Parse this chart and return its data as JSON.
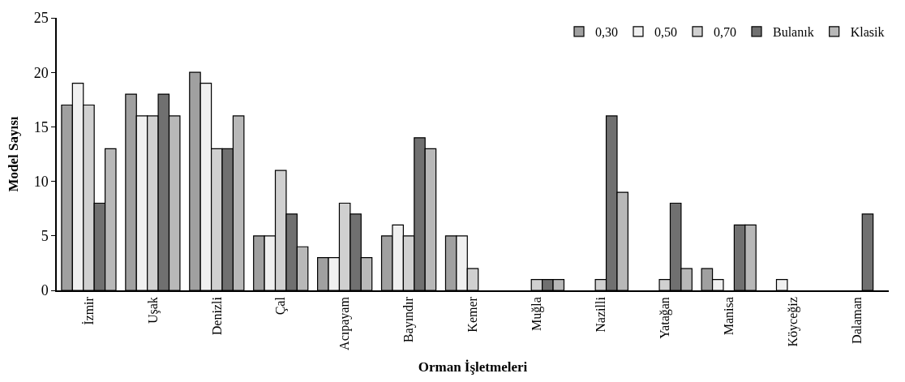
{
  "chart_data": {
    "type": "bar",
    "xlabel": "Orman İşletmeleri",
    "ylabel": "Model Sayısı",
    "categories": [
      "İzmir",
      "Uşak",
      "Denizli",
      "Çal",
      "Acıpayam",
      "Bayındır",
      "Kemer",
      "Muğla",
      "Nazilli",
      "Yatağan",
      "Manisa",
      "Köyceğiz",
      "Dalaman"
    ],
    "series": [
      {
        "name": "0,30",
        "color": "#a0a0a0",
        "values": [
          17,
          18,
          20,
          5,
          3,
          5,
          5,
          null,
          null,
          null,
          2,
          null,
          null
        ]
      },
      {
        "name": "0,50",
        "color": "#f0f0f0",
        "values": [
          19,
          16,
          19,
          5,
          3,
          6,
          5,
          null,
          null,
          null,
          1,
          1,
          null
        ]
      },
      {
        "name": "0,70",
        "color": "#d0d0d0",
        "values": [
          17,
          16,
          13,
          11,
          8,
          5,
          2,
          1,
          1,
          1,
          null,
          null,
          null
        ]
      },
      {
        "name": "Bulanık",
        "color": "#707070",
        "values": [
          8,
          18,
          13,
          7,
          7,
          14,
          null,
          1,
          16,
          8,
          6,
          null,
          7
        ]
      },
      {
        "name": "Klasik",
        "color": "#b8b8b8",
        "values": [
          13,
          16,
          16,
          4,
          3,
          13,
          null,
          1,
          9,
          2,
          6,
          null,
          null
        ]
      }
    ],
    "ylim": [
      0,
      25
    ],
    "yticks": [
      0,
      5,
      10,
      15,
      20,
      25
    ],
    "legend": "top right"
  }
}
